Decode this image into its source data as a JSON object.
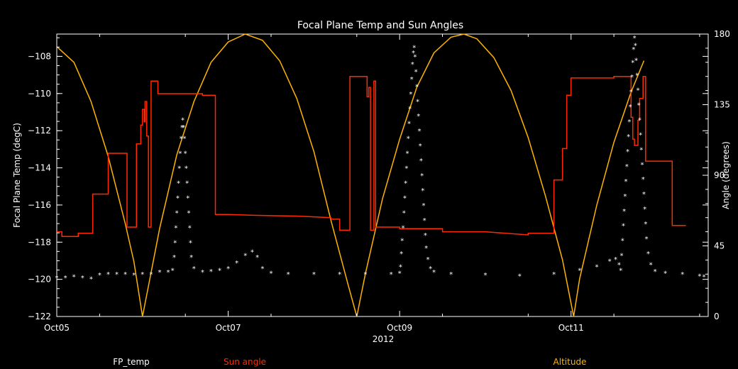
{
  "chart_data": {
    "type": "line",
    "title": "Focal Plane Temp and Sun Angles",
    "xlabel": "2012",
    "ylabel": "Focal Plane Temp (degC)",
    "y2label": "Angle (degrees)",
    "xlim": [
      0,
      7.6
    ],
    "ylim": [
      -122,
      -106.8
    ],
    "y2lim": [
      0,
      180
    ],
    "x_unit": "days since Oct05 2012",
    "x_ticks": [
      {
        "x": 0,
        "label": "Oct05"
      },
      {
        "x": 2,
        "label": "Oct07"
      },
      {
        "x": 4,
        "label": "Oct09"
      },
      {
        "x": 6,
        "label": "Oct11"
      }
    ],
    "y_ticks": [
      -108,
      -110,
      -112,
      -114,
      -116,
      -118,
      -120,
      -122
    ],
    "y2_ticks": [
      0,
      45,
      90,
      135,
      180
    ],
    "colors": {
      "fp_temp": "#ffffff",
      "sun_angle": "#ff2a00",
      "altitude": "#ffb400",
      "axes": "#ffffff"
    },
    "legend": {
      "position": "bottom",
      "entries": [
        {
          "name": "FP_temp",
          "color": "#ffffff"
        },
        {
          "name": "Sun angle",
          "color": "#ff2a00"
        },
        {
          "name": "Altitude",
          "color": "#ffb400"
        }
      ]
    },
    "series": [
      {
        "name": "FP_temp",
        "axis": "left",
        "style": "markers",
        "points": [
          [
            0.0,
            -119.9
          ],
          [
            0.1,
            -119.9
          ],
          [
            0.2,
            -119.85
          ],
          [
            0.3,
            -119.9
          ],
          [
            0.4,
            -119.95
          ],
          [
            0.5,
            -119.75
          ],
          [
            0.6,
            -119.7
          ],
          [
            0.7,
            -119.7
          ],
          [
            0.8,
            -119.7
          ],
          [
            0.9,
            -119.75
          ],
          [
            1.0,
            -119.7
          ],
          [
            1.1,
            -119.7
          ],
          [
            1.2,
            -119.6
          ],
          [
            1.3,
            -119.6
          ],
          [
            1.35,
            -119.5
          ],
          [
            1.37,
            -118.8
          ],
          [
            1.38,
            -118.0
          ],
          [
            1.39,
            -117.2
          ],
          [
            1.4,
            -116.4
          ],
          [
            1.41,
            -115.6
          ],
          [
            1.42,
            -114.8
          ],
          [
            1.43,
            -114.0
          ],
          [
            1.44,
            -113.2
          ],
          [
            1.45,
            -112.4
          ],
          [
            1.46,
            -111.8
          ],
          [
            1.47,
            -111.4
          ],
          [
            1.48,
            -111.8
          ],
          [
            1.49,
            -112.4
          ],
          [
            1.5,
            -113.2
          ],
          [
            1.51,
            -114.0
          ],
          [
            1.52,
            -114.8
          ],
          [
            1.53,
            -115.6
          ],
          [
            1.54,
            -116.4
          ],
          [
            1.55,
            -117.2
          ],
          [
            1.56,
            -118.0
          ],
          [
            1.57,
            -118.8
          ],
          [
            1.6,
            -119.4
          ],
          [
            1.7,
            -119.6
          ],
          [
            1.8,
            -119.55
          ],
          [
            1.9,
            -119.5
          ],
          [
            2.0,
            -119.4
          ],
          [
            2.1,
            -119.1
          ],
          [
            2.2,
            -118.7
          ],
          [
            2.28,
            -118.5
          ],
          [
            2.34,
            -118.8
          ],
          [
            2.4,
            -119.4
          ],
          [
            2.5,
            -119.65
          ],
          [
            2.7,
            -119.7
          ],
          [
            3.0,
            -119.7
          ],
          [
            3.3,
            -119.7
          ],
          [
            3.6,
            -119.7
          ],
          [
            3.9,
            -119.7
          ],
          [
            4.0,
            -119.65
          ],
          [
            4.01,
            -119.3
          ],
          [
            4.02,
            -118.6
          ],
          [
            4.03,
            -117.9
          ],
          [
            4.04,
            -117.2
          ],
          [
            4.05,
            -116.4
          ],
          [
            4.06,
            -115.6
          ],
          [
            4.07,
            -114.8
          ],
          [
            4.08,
            -114.0
          ],
          [
            4.09,
            -113.2
          ],
          [
            4.1,
            -112.4
          ],
          [
            4.11,
            -111.6
          ],
          [
            4.12,
            -110.8
          ],
          [
            4.13,
            -110.0
          ],
          [
            4.14,
            -109.2
          ],
          [
            4.15,
            -108.4
          ],
          [
            4.16,
            -107.8
          ],
          [
            4.17,
            -107.5
          ],
          [
            4.18,
            -108.0
          ],
          [
            4.19,
            -108.8
          ],
          [
            4.2,
            -109.6
          ],
          [
            4.21,
            -110.4
          ],
          [
            4.22,
            -111.2
          ],
          [
            4.23,
            -112.0
          ],
          [
            4.24,
            -112.8
          ],
          [
            4.25,
            -113.6
          ],
          [
            4.26,
            -114.4
          ],
          [
            4.27,
            -115.2
          ],
          [
            4.28,
            -116.0
          ],
          [
            4.29,
            -116.8
          ],
          [
            4.3,
            -117.6
          ],
          [
            4.31,
            -118.3
          ],
          [
            4.33,
            -118.9
          ],
          [
            4.36,
            -119.4
          ],
          [
            4.4,
            -119.6
          ],
          [
            4.6,
            -119.7
          ],
          [
            5.0,
            -119.75
          ],
          [
            5.4,
            -119.8
          ],
          [
            5.8,
            -119.7
          ],
          [
            6.1,
            -119.5
          ],
          [
            6.3,
            -119.3
          ],
          [
            6.45,
            -119.0
          ],
          [
            6.52,
            -118.9
          ],
          [
            6.56,
            -119.2
          ],
          [
            6.58,
            -119.5
          ],
          [
            6.59,
            -118.7
          ],
          [
            6.6,
            -117.9
          ],
          [
            6.61,
            -117.1
          ],
          [
            6.62,
            -116.3
          ],
          [
            6.63,
            -115.5
          ],
          [
            6.64,
            -114.7
          ],
          [
            6.65,
            -113.9
          ],
          [
            6.66,
            -113.1
          ],
          [
            6.67,
            -112.3
          ],
          [
            6.68,
            -111.5
          ],
          [
            6.69,
            -110.7
          ],
          [
            6.7,
            -109.9
          ],
          [
            6.71,
            -109.1
          ],
          [
            6.72,
            -108.3
          ],
          [
            6.73,
            -107.6
          ],
          [
            6.74,
            -107.0
          ],
          [
            6.75,
            -107.4
          ],
          [
            6.76,
            -108.2
          ],
          [
            6.77,
            -109.0
          ],
          [
            6.78,
            -109.8
          ],
          [
            6.79,
            -110.6
          ],
          [
            6.8,
            -111.4
          ],
          [
            6.81,
            -112.2
          ],
          [
            6.82,
            -113.0
          ],
          [
            6.83,
            -113.8
          ],
          [
            6.84,
            -114.6
          ],
          [
            6.85,
            -115.4
          ],
          [
            6.86,
            -116.2
          ],
          [
            6.87,
            -117.0
          ],
          [
            6.88,
            -117.8
          ],
          [
            6.9,
            -118.6
          ],
          [
            6.93,
            -119.2
          ],
          [
            6.98,
            -119.55
          ],
          [
            7.1,
            -119.65
          ],
          [
            7.3,
            -119.7
          ],
          [
            7.5,
            -119.8
          ],
          [
            7.55,
            -119.85
          ]
        ]
      },
      {
        "name": "Sun angle",
        "axis": "right",
        "style": "line",
        "points": [
          [
            0.0,
            54
          ],
          [
            0.06,
            54
          ],
          [
            0.06,
            51
          ],
          [
            0.25,
            51
          ],
          [
            0.25,
            53
          ],
          [
            0.42,
            53
          ],
          [
            0.42,
            78
          ],
          [
            0.6,
            78
          ],
          [
            0.6,
            104
          ],
          [
            0.82,
            104
          ],
          [
            0.82,
            57
          ],
          [
            0.93,
            57
          ],
          [
            0.93,
            110
          ],
          [
            0.98,
            110
          ],
          [
            0.98,
            122
          ],
          [
            1.0,
            122
          ],
          [
            1.0,
            132
          ],
          [
            1.02,
            132
          ],
          [
            1.02,
            124
          ],
          [
            1.03,
            124
          ],
          [
            1.03,
            137
          ],
          [
            1.05,
            137
          ],
          [
            1.05,
            115
          ],
          [
            1.07,
            115
          ],
          [
            1.07,
            57
          ],
          [
            1.1,
            57
          ],
          [
            1.1,
            150
          ],
          [
            1.18,
            150
          ],
          [
            1.18,
            142
          ],
          [
            1.7,
            142
          ],
          [
            1.7,
            141
          ],
          [
            1.85,
            141
          ],
          [
            1.85,
            65
          ],
          [
            2.0,
            65
          ],
          [
            2.3,
            64.5
          ],
          [
            2.8,
            64
          ],
          [
            3.2,
            63
          ],
          [
            3.2,
            62
          ],
          [
            3.3,
            62
          ],
          [
            3.3,
            55
          ],
          [
            3.42,
            55
          ],
          [
            3.42,
            153
          ],
          [
            3.62,
            153
          ],
          [
            3.62,
            140
          ],
          [
            3.64,
            140
          ],
          [
            3.64,
            146
          ],
          [
            3.66,
            146
          ],
          [
            3.66,
            55
          ],
          [
            3.7,
            55
          ],
          [
            3.7,
            150
          ],
          [
            3.72,
            150
          ],
          [
            3.72,
            57
          ],
          [
            4.0,
            57
          ],
          [
            4.0,
            56
          ],
          [
            4.5,
            56
          ],
          [
            4.5,
            54
          ],
          [
            5.0,
            54
          ],
          [
            5.5,
            52
          ],
          [
            5.5,
            53
          ],
          [
            5.8,
            53
          ],
          [
            5.8,
            87
          ],
          [
            5.9,
            87
          ],
          [
            5.9,
            107
          ],
          [
            5.95,
            107
          ],
          [
            5.95,
            141
          ],
          [
            6.0,
            141
          ],
          [
            6.0,
            152
          ],
          [
            6.5,
            152
          ],
          [
            6.5,
            153
          ],
          [
            6.7,
            153
          ],
          [
            6.7,
            127
          ],
          [
            6.72,
            127
          ],
          [
            6.72,
            113
          ],
          [
            6.74,
            113
          ],
          [
            6.74,
            109
          ],
          [
            6.78,
            109
          ],
          [
            6.78,
            125
          ],
          [
            6.8,
            125
          ],
          [
            6.8,
            139
          ],
          [
            6.84,
            139
          ],
          [
            6.84,
            153
          ],
          [
            6.87,
            153
          ],
          [
            6.87,
            99
          ],
          [
            7.12,
            99
          ],
          [
            7.12,
            99
          ],
          [
            7.18,
            99
          ],
          [
            7.18,
            58
          ],
          [
            7.34,
            58
          ]
        ]
      },
      {
        "name": "Altitude",
        "axis": "right",
        "style": "line",
        "points": [
          [
            0.0,
            172
          ],
          [
            0.2,
            162
          ],
          [
            0.4,
            137
          ],
          [
            0.6,
            102
          ],
          [
            0.8,
            59
          ],
          [
            0.9,
            35
          ],
          [
            1.0,
            0
          ],
          [
            1.1,
            28
          ],
          [
            1.2,
            56
          ],
          [
            1.4,
            103
          ],
          [
            1.6,
            137
          ],
          [
            1.8,
            162
          ],
          [
            2.0,
            175
          ],
          [
            2.2,
            180
          ],
          [
            2.4,
            176
          ],
          [
            2.6,
            163
          ],
          [
            2.8,
            139
          ],
          [
            3.0,
            105
          ],
          [
            3.2,
            61
          ],
          [
            3.4,
            20
          ],
          [
            3.5,
            0
          ],
          [
            3.6,
            27
          ],
          [
            3.8,
            75
          ],
          [
            4.0,
            113
          ],
          [
            4.2,
            146
          ],
          [
            4.4,
            168
          ],
          [
            4.6,
            178
          ],
          [
            4.75,
            180
          ],
          [
            4.9,
            177
          ],
          [
            5.1,
            165
          ],
          [
            5.3,
            144
          ],
          [
            5.5,
            114
          ],
          [
            5.7,
            77
          ],
          [
            5.9,
            36
          ],
          [
            6.03,
            0
          ],
          [
            6.1,
            24
          ],
          [
            6.3,
            71
          ],
          [
            6.5,
            111
          ],
          [
            6.7,
            143
          ],
          [
            6.85,
            163
          ]
        ]
      }
    ]
  }
}
